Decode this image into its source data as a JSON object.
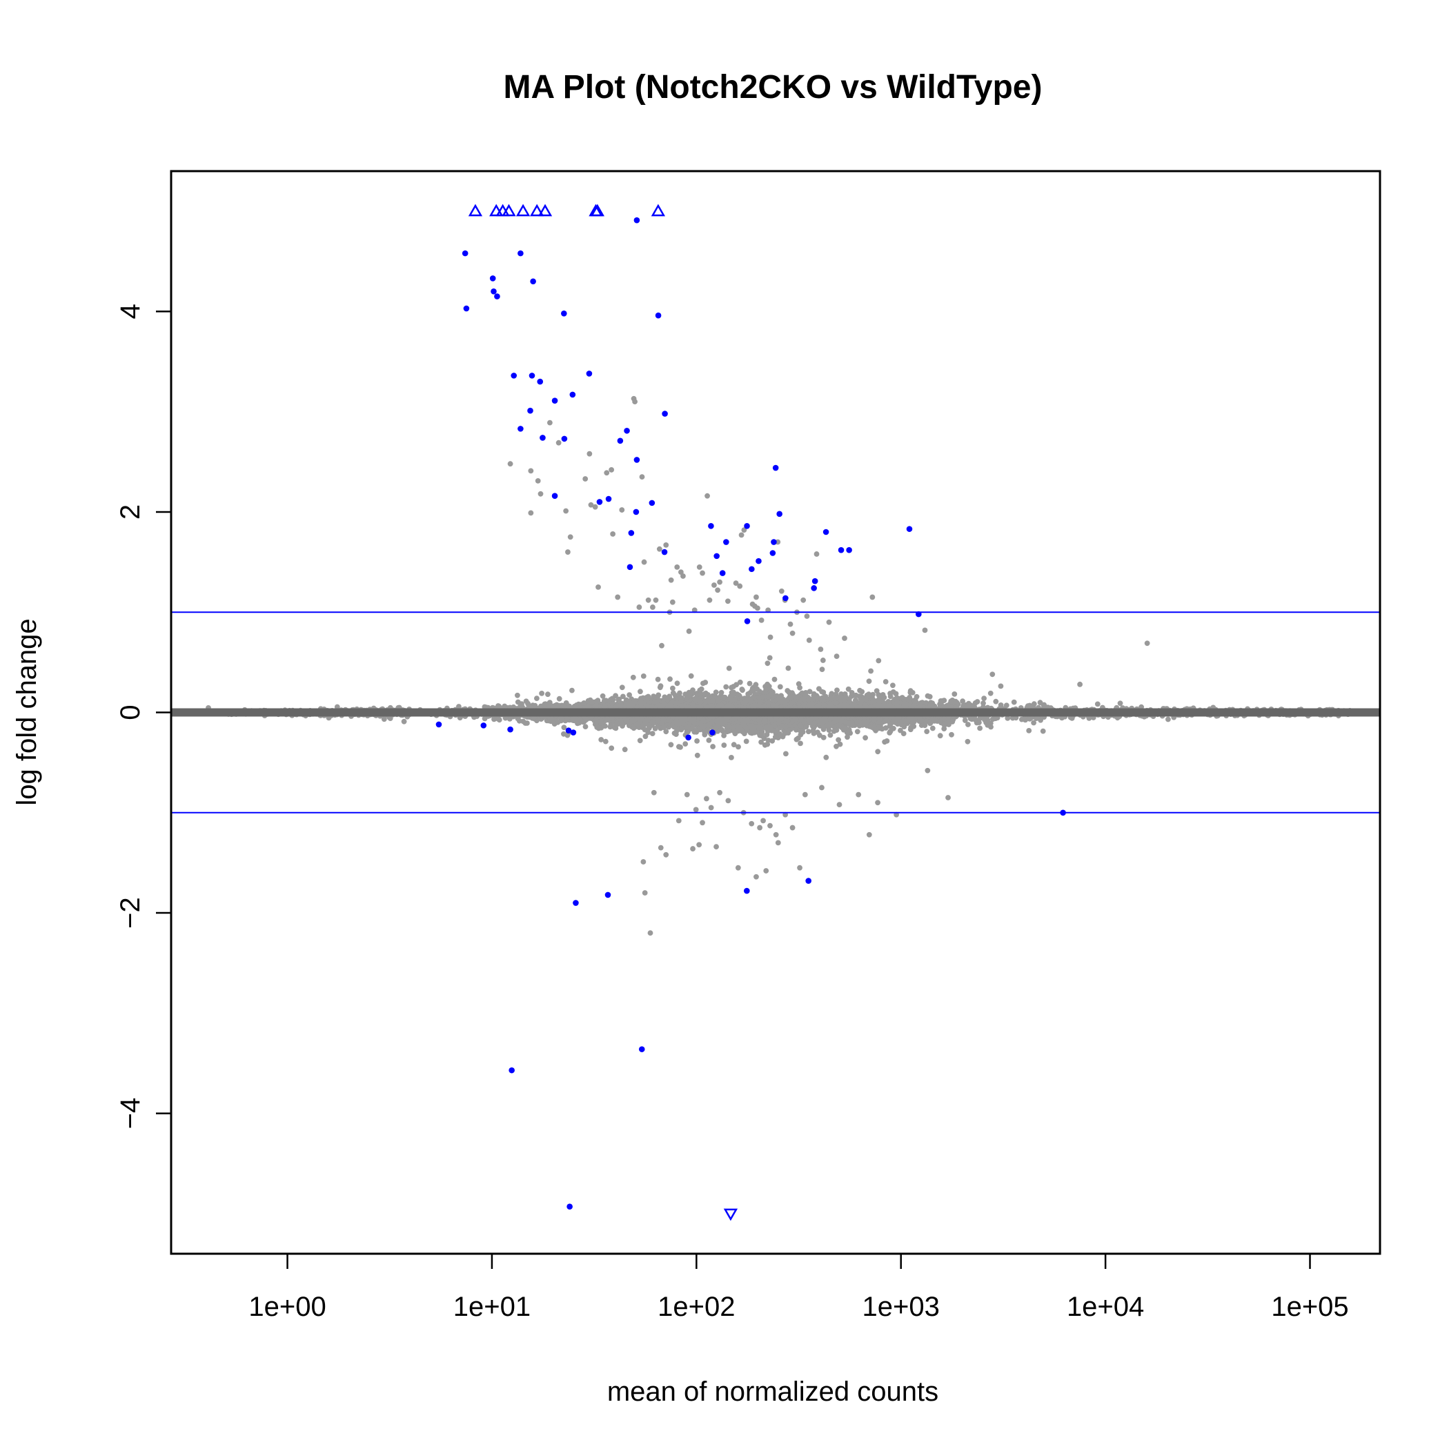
{
  "chart_data": {
    "type": "scatter",
    "title": "MA Plot (Notch2CKO vs WildType)",
    "xlabel": "mean of normalized counts",
    "ylabel": "log fold change",
    "x_scale": "log10",
    "xlim": [
      0.27,
      220000
    ],
    "ylim": [
      -5.4,
      5.4
    ],
    "x_ticks": [
      {
        "value": 1,
        "label": "1e+00"
      },
      {
        "value": 10,
        "label": "1e+01"
      },
      {
        "value": 100,
        "label": "1e+02"
      },
      {
        "value": 1000,
        "label": "1e+03"
      },
      {
        "value": 10000,
        "label": "1e+04"
      },
      {
        "value": 100000,
        "label": "1e+05"
      }
    ],
    "y_ticks": [
      {
        "value": -4,
        "label": "−4"
      },
      {
        "value": -2,
        "label": "−2"
      },
      {
        "value": 0,
        "label": "0"
      },
      {
        "value": 2,
        "label": "2"
      },
      {
        "value": 4,
        "label": "4"
      }
    ],
    "threshold_lines": [
      1,
      -1
    ],
    "colors": {
      "significant": "#0000ff",
      "not_significant": "#999999",
      "zero_line": "#666666",
      "threshold": "#0000ff"
    },
    "significant_points": [
      [
        7.4,
        4.58
      ],
      [
        7.5,
        4.03
      ],
      [
        10.1,
        4.33
      ],
      [
        10.2,
        4.2
      ],
      [
        10.6,
        4.15
      ],
      [
        13.8,
        4.58
      ],
      [
        15.9,
        4.3
      ],
      [
        22.5,
        3.98
      ],
      [
        51.1,
        4.91
      ],
      [
        65.1,
        3.96
      ],
      [
        12.8,
        3.36
      ],
      [
        15.7,
        3.36
      ],
      [
        17.2,
        3.3
      ],
      [
        20.3,
        3.11
      ],
      [
        24.8,
        3.17
      ],
      [
        29.9,
        3.38
      ],
      [
        15.4,
        3.01
      ],
      [
        13.8,
        2.83
      ],
      [
        17.7,
        2.74
      ],
      [
        22.6,
        2.73
      ],
      [
        42.4,
        2.71
      ],
      [
        45.7,
        2.81
      ],
      [
        51.1,
        2.52
      ],
      [
        70.1,
        2.98
      ],
      [
        20.3,
        2.16
      ],
      [
        33.6,
        2.1
      ],
      [
        37.2,
        2.13
      ],
      [
        48.0,
        1.79
      ],
      [
        50.7,
        2.0
      ],
      [
        60.6,
        2.09
      ],
      [
        69.8,
        1.6
      ],
      [
        47.3,
        1.45
      ],
      [
        117.8,
        1.86
      ],
      [
        125.6,
        1.56
      ],
      [
        139.7,
        1.7
      ],
      [
        134.2,
        1.39
      ],
      [
        176.6,
        1.86
      ],
      [
        186.2,
        1.43
      ],
      [
        201.4,
        1.51
      ],
      [
        236.0,
        1.59
      ],
      [
        238.9,
        1.7
      ],
      [
        244.0,
        2.44
      ],
      [
        254.7,
        1.98
      ],
      [
        272.5,
        1.14
      ],
      [
        375.5,
        1.24
      ],
      [
        380.0,
        1.31
      ],
      [
        430.0,
        1.8
      ],
      [
        510.0,
        1.62
      ],
      [
        558.0,
        1.62
      ],
      [
        1100.0,
        1.83
      ],
      [
        1220.0,
        0.98
      ],
      [
        177.3,
        0.91
      ],
      [
        5.5,
        -0.12
      ],
      [
        9.1,
        -0.13
      ],
      [
        12.3,
        -0.17
      ],
      [
        23.7,
        -0.18
      ],
      [
        25.0,
        -0.2
      ],
      [
        91.3,
        -0.25
      ],
      [
        119.7,
        -0.2
      ],
      [
        6200.0,
        -1.0
      ],
      [
        25.7,
        -1.9
      ],
      [
        36.9,
        -1.82
      ],
      [
        176.3,
        -1.78
      ],
      [
        353.0,
        -1.68
      ],
      [
        12.5,
        -3.57
      ],
      [
        54.1,
        -3.36
      ],
      [
        24.0,
        -4.93
      ]
    ],
    "significant_out_of_range_up": [
      [
        8.3,
        5.0
      ],
      [
        10.5,
        5.0
      ],
      [
        11.3,
        5.0
      ],
      [
        12.1,
        5.0
      ],
      [
        14.2,
        5.0
      ],
      [
        16.6,
        5.0
      ],
      [
        18.2,
        5.0
      ],
      [
        32.2,
        5.0
      ],
      [
        32.8,
        5.0
      ],
      [
        65.0,
        5.0
      ]
    ],
    "significant_out_of_range_down": [
      [
        147.0,
        -5.0
      ]
    ],
    "nonsignificant_outliers": [
      [
        12.3,
        2.48
      ],
      [
        15.5,
        2.41
      ],
      [
        16.8,
        2.31
      ],
      [
        17.3,
        2.18
      ],
      [
        15.5,
        1.99
      ],
      [
        19.2,
        2.89
      ],
      [
        21.2,
        2.69
      ],
      [
        23.0,
        2.01
      ],
      [
        23.5,
        1.6
      ],
      [
        24.2,
        1.75
      ],
      [
        28.6,
        2.33
      ],
      [
        30.0,
        2.58
      ],
      [
        30.5,
        2.07
      ],
      [
        32.0,
        2.05
      ],
      [
        33.1,
        1.25
      ],
      [
        36.4,
        2.39
      ],
      [
        38.4,
        2.42
      ],
      [
        39.0,
        1.78
      ],
      [
        41.2,
        1.15
      ],
      [
        43.2,
        2.02
      ],
      [
        49.4,
        3.13
      ],
      [
        50.0,
        3.1
      ],
      [
        52.5,
        1.05
      ],
      [
        54.2,
        2.35
      ],
      [
        55.5,
        1.5
      ],
      [
        58.2,
        1.12
      ],
      [
        61.1,
        1.05
      ],
      [
        63.3,
        1.12
      ],
      [
        66.0,
        1.63
      ],
      [
        71.0,
        1.67
      ],
      [
        74.0,
        1.0
      ],
      [
        75.2,
        1.32
      ],
      [
        76.5,
        1.1
      ],
      [
        80.4,
        1.45
      ],
      [
        84.0,
        1.4
      ],
      [
        86.0,
        1.36
      ],
      [
        92.0,
        0.81
      ],
      [
        98.0,
        1.02
      ],
      [
        103.5,
        1.45
      ],
      [
        107.0,
        1.39
      ],
      [
        113.0,
        2.16
      ],
      [
        116.0,
        1.12
      ],
      [
        122.0,
        1.27
      ],
      [
        127.0,
        1.22
      ],
      [
        130.0,
        1.3
      ],
      [
        142.5,
        1.11
      ],
      [
        156.0,
        1.29
      ],
      [
        163.0,
        1.26
      ],
      [
        166.0,
        1.77
      ],
      [
        171.0,
        1.82
      ],
      [
        188.0,
        1.08
      ],
      [
        193.0,
        1.06
      ],
      [
        196.0,
        1.15
      ],
      [
        199.0,
        1.04
      ],
      [
        208.0,
        0.92
      ],
      [
        224.0,
        1.02
      ],
      [
        230.0,
        0.75
      ],
      [
        250.0,
        1.7
      ],
      [
        261.0,
        1.21
      ],
      [
        271.0,
        1.12
      ],
      [
        288.0,
        0.88
      ],
      [
        295.0,
        0.79
      ],
      [
        310.0,
        1.0
      ],
      [
        333.0,
        1.12
      ],
      [
        347.0,
        0.96
      ],
      [
        356.0,
        0.72
      ],
      [
        387.0,
        1.58
      ],
      [
        405.0,
        0.63
      ],
      [
        416.0,
        0.52
      ],
      [
        445.0,
        0.9
      ],
      [
        485.0,
        0.56
      ],
      [
        530.0,
        0.74
      ],
      [
        725.0,
        1.15
      ],
      [
        1310.0,
        0.82
      ],
      [
        2800.0,
        0.38
      ],
      [
        16000.0,
        0.69
      ],
      [
        7500.0,
        0.28
      ],
      [
        36.0,
        -0.29
      ],
      [
        62.0,
        -0.8
      ],
      [
        67.0,
        -1.35
      ],
      [
        55.0,
        -1.49
      ],
      [
        56.0,
        -1.8
      ],
      [
        59.5,
        -2.2
      ],
      [
        71.0,
        -1.42
      ],
      [
        82.0,
        -1.08
      ],
      [
        90.0,
        -0.82
      ],
      [
        96.0,
        -1.36
      ],
      [
        99.5,
        -0.97
      ],
      [
        103.0,
        -1.32
      ],
      [
        107.0,
        -1.1
      ],
      [
        112.0,
        -0.86
      ],
      [
        118.0,
        -0.95
      ],
      [
        125.0,
        -1.34
      ],
      [
        130.0,
        -0.8
      ],
      [
        143.0,
        -0.88
      ],
      [
        160.0,
        -1.55
      ],
      [
        170.0,
        -1.0
      ],
      [
        186.0,
        -1.11
      ],
      [
        196.0,
        -1.64
      ],
      [
        204.0,
        -1.15
      ],
      [
        212.0,
        -1.08
      ],
      [
        219.0,
        -1.58
      ],
      [
        229.0,
        -1.13
      ],
      [
        245.0,
        -1.22
      ],
      [
        251.0,
        -1.3
      ],
      [
        272.0,
        -1.02
      ],
      [
        295.0,
        -1.15
      ],
      [
        320.0,
        -1.55
      ],
      [
        340.0,
        -0.82
      ],
      [
        410.0,
        -0.75
      ],
      [
        500.0,
        -0.92
      ],
      [
        620.0,
        -0.82
      ],
      [
        700.0,
        -1.22
      ],
      [
        770.0,
        -0.9
      ],
      [
        950.0,
        -1.02
      ],
      [
        1700.0,
        -0.85
      ],
      [
        1350.0,
        -0.58
      ]
    ]
  }
}
